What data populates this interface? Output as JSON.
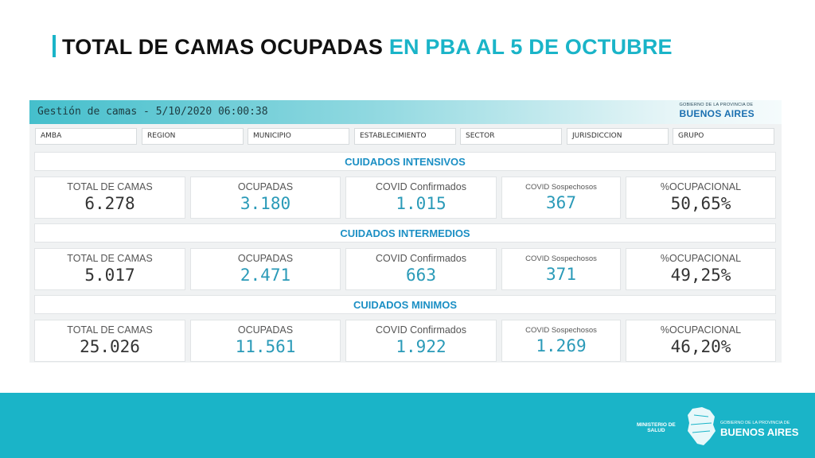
{
  "slide": {
    "title_part1": "TOTAL DE CAMAS OCUPADAS",
    "title_part2": "EN PBA AL 5 DE OCTUBRE"
  },
  "dashboard": {
    "title": "Gestión de camas - 5/10/2020 06:00:38",
    "logo_small": "GOBIERNO DE LA PROVINCIA DE",
    "logo_big": "BUENOS AIRES",
    "filters": [
      "AMBA",
      "REGION",
      "MUNICIPIO",
      "ESTABLECIMIENTO",
      "SECTOR",
      "JURISDICCION",
      "GRUPO"
    ],
    "labels": {
      "total": "TOTAL DE CAMAS",
      "ocupadas": "OCUPADAS",
      "confirmados": "COVID Confirmados",
      "sospechosos": "COVID Sospechosos",
      "ocupacional": "%OCUPACIONAL"
    },
    "sections": [
      {
        "name": "CUIDADOS INTENSIVOS",
        "total": "6.278",
        "ocupadas": "3.180",
        "confirmados": "1.015",
        "sospechosos": "367",
        "ocupacional": "50,65%"
      },
      {
        "name": "CUIDADOS INTERMEDIOS",
        "total": "5.017",
        "ocupadas": "2.471",
        "confirmados": "663",
        "sospechosos": "371",
        "ocupacional": "49,25%"
      },
      {
        "name": "CUIDADOS MINIMOS",
        "total": "25.026",
        "ocupadas": "11.561",
        "confirmados": "1.922",
        "sospechosos": "1.269",
        "ocupacional": "46,20%"
      }
    ]
  },
  "footer": {
    "ministerio_line1": "MINISTERIO DE",
    "ministerio_line2": "SALUD",
    "logo_small": "GOBIERNO DE LA PROVINCIA DE",
    "logo_big": "BUENOS AIRES"
  },
  "colors": {
    "accent": "#1ab4c8",
    "section_text": "#1b8fc4",
    "value_teal": "#2a9ab8"
  }
}
